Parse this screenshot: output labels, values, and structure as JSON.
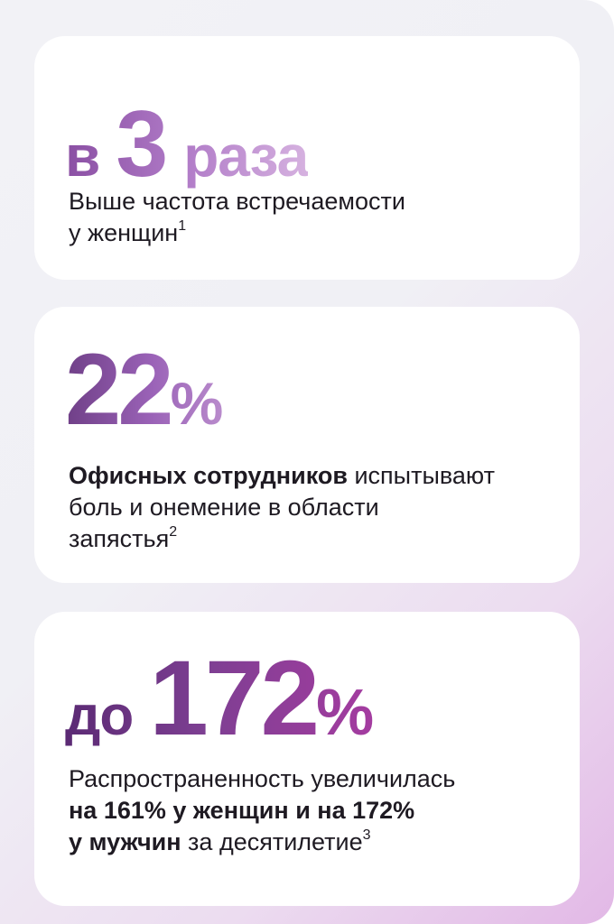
{
  "card1": {
    "prefix": "в",
    "number": "3",
    "suffix": "раза",
    "text_line1": "Выше частота встречаемости",
    "text_line2": "у женщин",
    "footnote": "1"
  },
  "card2": {
    "number": "22",
    "suffix": "%",
    "bold_text": "Офисных сотрудников",
    "text_rest_line1": " испытывают",
    "text_line2": "боль и онемение в области",
    "text_line3": "запястья",
    "footnote": "2"
  },
  "card3": {
    "prefix": "до",
    "number": "172",
    "suffix": "%",
    "text_line1": "Распространенность увеличилась",
    "bold_line2": "на 161% у женщин и на 172%",
    "bold_line3_start": "у мужчин",
    "text_line3_rest": " за десятилетие",
    "footnote": "3"
  },
  "colors": {
    "background_start": "#f2f2f6",
    "background_end": "#e2b8e6",
    "card": "#ffffff",
    "headline_purple": "#8a4fa3",
    "text": "#1e1a22"
  }
}
